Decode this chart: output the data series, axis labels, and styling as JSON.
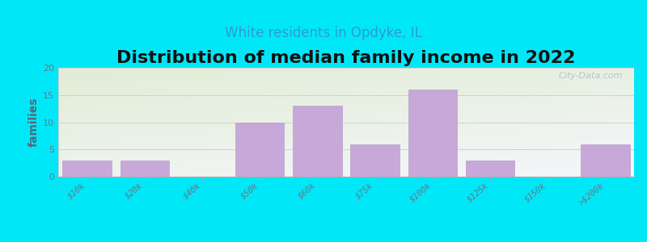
{
  "title": "Distribution of median family income in 2022",
  "subtitle": "White residents in Opdyke, IL",
  "categories": [
    "$10k",
    "$20k",
    "$40k",
    "$50k",
    "$60k",
    "$75k",
    "$100k",
    "$125k",
    "$150k",
    ">$200k"
  ],
  "values": [
    3,
    3,
    0,
    10,
    13,
    6,
    16,
    3,
    0,
    6
  ],
  "bar_color": "#c8a8d8",
  "bar_edge_color": "#b8a0c8",
  "ylabel": "families",
  "ylim": [
    0,
    20
  ],
  "yticks": [
    0,
    5,
    10,
    15,
    20
  ],
  "background_outer": "#00e8f8",
  "title_fontsize": 16,
  "title_fontweight": "bold",
  "subtitle_fontsize": 12,
  "subtitle_color": "#3399cc",
  "watermark_text": "City-Data.com",
  "watermark_color": "#b0bcc8",
  "tick_label_color": "#667788",
  "ylabel_color": "#556677"
}
